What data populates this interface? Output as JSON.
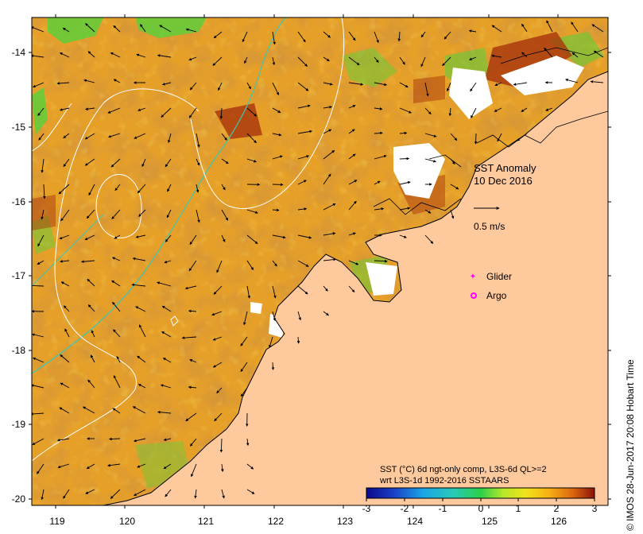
{
  "map": {
    "title": "SST Anomaly",
    "date": "10 Dec 2016",
    "arrow_scale_label": "0.5 m/s",
    "legend_glider": "Glider",
    "legend_argo": "Argo",
    "caption_line1": "SST (°C) 6d ngt-only comp, L3S-6d QL>=2",
    "caption_line2": "wrt L3S-1d 1992-2016 SSTAARS",
    "credit": "© IMOS 28-Jun-2017 20:08 Hobart Time",
    "lon_ticks": [
      "119",
      "120",
      "121",
      "122",
      "123",
      "124",
      "125",
      "126"
    ],
    "lat_ticks": [
      "-14",
      "-15",
      "-16",
      "-17",
      "-18",
      "-19",
      "-20"
    ],
    "colorbar_ticks": [
      "-3",
      "-2",
      "-1",
      "0",
      "1",
      "2",
      "3"
    ],
    "colors": {
      "land": "#fdc99d",
      "anomaly_warm": "#e49a1f",
      "anomaly_hot": "#b5430f",
      "glider_marker": "#ff00ff",
      "argo_marker": "#ff00ff",
      "contour_isobath": "#3fc6b0",
      "contour_white": "#ffffff"
    }
  }
}
